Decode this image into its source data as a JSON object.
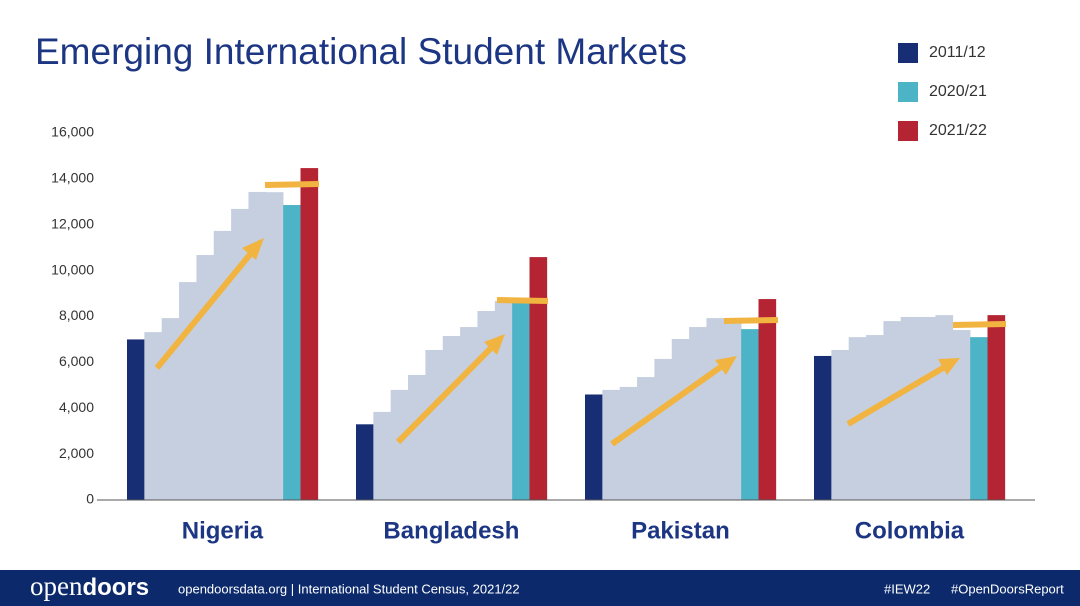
{
  "chart_data": {
    "type": "bar",
    "title": "Emerging International Student Markets",
    "categories": [
      "Nigeria",
      "Bangladesh",
      "Pakistan",
      "Colombia"
    ],
    "series": [
      {
        "name": "2011/12",
        "color": "#172d74",
        "values": [
          7000,
          3300,
          4600,
          6280
        ]
      },
      {
        "color": "#c6cfdf",
        "values": [
          7320,
          3840,
          4800,
          6540
        ]
      },
      {
        "color": "#c6cfdf",
        "values": [
          7930,
          4800,
          4930,
          7100
        ]
      },
      {
        "color": "#c6cfdf",
        "values": [
          9500,
          5450,
          5360,
          7190
        ]
      },
      {
        "color": "#c6cfdf",
        "values": [
          10680,
          6540,
          6150,
          7800
        ]
      },
      {
        "color": "#c6cfdf",
        "values": [
          11730,
          7150,
          7020,
          7980
        ]
      },
      {
        "color": "#c6cfdf",
        "values": [
          12690,
          7540,
          7540,
          7980
        ]
      },
      {
        "color": "#c6cfdf",
        "values": [
          13430,
          8240,
          7930,
          8060
        ]
      },
      {
        "color": "#c6cfdf",
        "values": [
          13420,
          8680,
          7930,
          7410
        ]
      },
      {
        "name": "2020/21",
        "color": "#4db3c6",
        "values": [
          12860,
          8630,
          7450,
          7100
        ]
      },
      {
        "name": "2021/22",
        "color": "#b42433",
        "values": [
          14470,
          10590,
          8760,
          8060
        ]
      }
    ],
    "ylim": [
      0,
      16000
    ],
    "yticks": [
      0,
      {
        "value": 2000,
        "label": "2,000"
      },
      {
        "value": 4000,
        "label": "4,000"
      },
      {
        "value": 6000,
        "label": "6,000"
      },
      {
        "value": 8000,
        "label": "8,000"
      },
      {
        "value": 10000,
        "label": "10,000"
      },
      {
        "value": 12000,
        "label": "12,000"
      },
      {
        "value": 14000,
        "label": "14,000"
      },
      {
        "value": 16000,
        "label": "16,000"
      }
    ],
    "grid": false,
    "legend": "top-right"
  },
  "footer": {
    "logo_open": "open",
    "logo_doors": "doors",
    "source": "opendoorsdata.org  |  International Student Census, 2021/22",
    "tag1": "#IEW22",
    "tag2": "#OpenDoorsReport"
  }
}
